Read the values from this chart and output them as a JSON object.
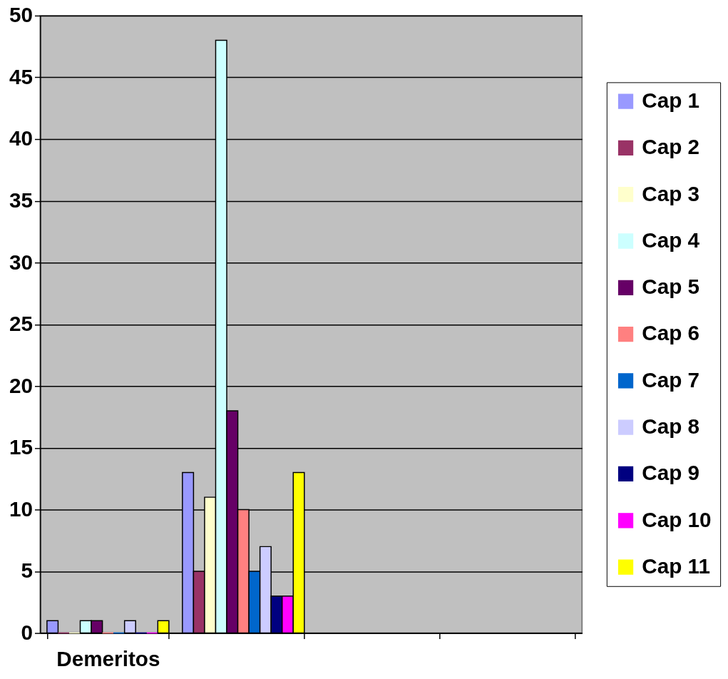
{
  "chart_data": {
    "type": "bar",
    "categories": [
      "Demeritos",
      null,
      null,
      null
    ],
    "series": [
      {
        "name": "Cap 1",
        "color": "#9999ff",
        "values": [
          1,
          13,
          null,
          null
        ]
      },
      {
        "name": "Cap 2",
        "color": "#993366",
        "values": [
          0,
          5,
          null,
          null
        ]
      },
      {
        "name": "Cap 3",
        "color": "#ffffcc",
        "values": [
          0,
          11,
          null,
          null
        ]
      },
      {
        "name": "Cap 4",
        "color": "#ccffff",
        "values": [
          1,
          48,
          null,
          null
        ]
      },
      {
        "name": "Cap 5",
        "color": "#660066",
        "values": [
          1,
          18,
          null,
          null
        ]
      },
      {
        "name": "Cap 6",
        "color": "#ff8080",
        "values": [
          0,
          10,
          null,
          null
        ]
      },
      {
        "name": "Cap 7",
        "color": "#0066cc",
        "values": [
          0,
          5,
          null,
          null
        ]
      },
      {
        "name": "Cap 8",
        "color": "#ccccff",
        "values": [
          1,
          7,
          null,
          null
        ]
      },
      {
        "name": "Cap 9",
        "color": "#000080",
        "values": [
          0,
          3,
          null,
          null
        ]
      },
      {
        "name": "Cap 10",
        "color": "#ff00ff",
        "values": [
          0,
          3,
          null,
          null
        ]
      },
      {
        "name": "Cap 11",
        "color": "#ffff00",
        "values": [
          1,
          13,
          null,
          null
        ]
      }
    ],
    "ylim": [
      0,
      50
    ],
    "yticks": [
      0,
      5,
      10,
      15,
      20,
      25,
      30,
      35,
      40,
      45,
      50
    ],
    "grid": "y",
    "legend": "right"
  }
}
